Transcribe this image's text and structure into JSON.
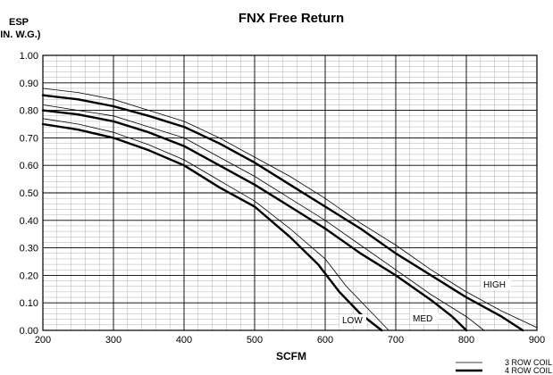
{
  "chart_data": {
    "type": "line",
    "title": "FNX Free Return",
    "ylabel_line1": "ESP",
    "ylabel_line2": "(IN. W.G.)",
    "xlabel": "SCFM",
    "xlim": [
      200,
      900
    ],
    "ylim": [
      0,
      1.0
    ],
    "x_ticks": [
      "200",
      "300",
      "400",
      "500",
      "600",
      "700",
      "800",
      "900"
    ],
    "y_ticks": [
      "0.00",
      "0.10",
      "0.20",
      "0.30",
      "0.40",
      "0.50",
      "0.60",
      "0.70",
      "0.80",
      "0.90",
      "1.00"
    ],
    "grid": true,
    "annotations": {
      "low": "LOW",
      "med": "MED",
      "high": "HIGH"
    },
    "legend": {
      "thin": "3 ROW COIL",
      "thick": "4 ROW COIL",
      "position": "bottom-right"
    },
    "series": [
      {
        "speed": "LOW",
        "coil": "4 ROW COIL",
        "weight": "thick",
        "x": [
          200,
          250,
          300,
          350,
          400,
          450,
          500,
          550,
          590,
          620,
          650,
          680
        ],
        "y": [
          0.75,
          0.73,
          0.7,
          0.655,
          0.6,
          0.52,
          0.45,
          0.34,
          0.24,
          0.14,
          0.06,
          0.0
        ]
      },
      {
        "speed": "LOW",
        "coil": "3 ROW COIL",
        "weight": "thin",
        "x": [
          200,
          250,
          300,
          350,
          400,
          450,
          500,
          550,
          600,
          630,
          660,
          690
        ],
        "y": [
          0.77,
          0.75,
          0.72,
          0.675,
          0.62,
          0.545,
          0.47,
          0.37,
          0.26,
          0.16,
          0.08,
          0.0
        ]
      },
      {
        "speed": "MED",
        "coil": "4 ROW COIL",
        "weight": "thick",
        "x": [
          200,
          250,
          300,
          350,
          400,
          450,
          500,
          550,
          600,
          650,
          700,
          750,
          780,
          800
        ],
        "y": [
          0.8,
          0.785,
          0.76,
          0.72,
          0.67,
          0.6,
          0.53,
          0.45,
          0.37,
          0.28,
          0.2,
          0.11,
          0.05,
          0.0
        ]
      },
      {
        "speed": "MED",
        "coil": "3 ROW COIL",
        "weight": "thin",
        "x": [
          200,
          250,
          300,
          350,
          400,
          450,
          500,
          550,
          600,
          650,
          700,
          750,
          800,
          825
        ],
        "y": [
          0.82,
          0.8,
          0.78,
          0.74,
          0.7,
          0.63,
          0.56,
          0.48,
          0.4,
          0.31,
          0.22,
          0.13,
          0.05,
          0.0
        ]
      },
      {
        "speed": "HIGH",
        "coil": "4 ROW COIL",
        "weight": "thick",
        "x": [
          200,
          250,
          300,
          350,
          400,
          450,
          500,
          550,
          600,
          650,
          700,
          750,
          800,
          850,
          880
        ],
        "y": [
          0.855,
          0.84,
          0.815,
          0.78,
          0.74,
          0.68,
          0.61,
          0.53,
          0.45,
          0.37,
          0.28,
          0.2,
          0.12,
          0.05,
          0.0
        ]
      },
      {
        "speed": "HIGH",
        "coil": "3 ROW COIL",
        "weight": "thin",
        "x": [
          200,
          250,
          300,
          350,
          400,
          450,
          500,
          550,
          600,
          650,
          700,
          750,
          800,
          850,
          900
        ],
        "y": [
          0.88,
          0.865,
          0.84,
          0.8,
          0.76,
          0.7,
          0.63,
          0.56,
          0.48,
          0.39,
          0.31,
          0.22,
          0.14,
          0.07,
          0.01
        ]
      }
    ]
  }
}
